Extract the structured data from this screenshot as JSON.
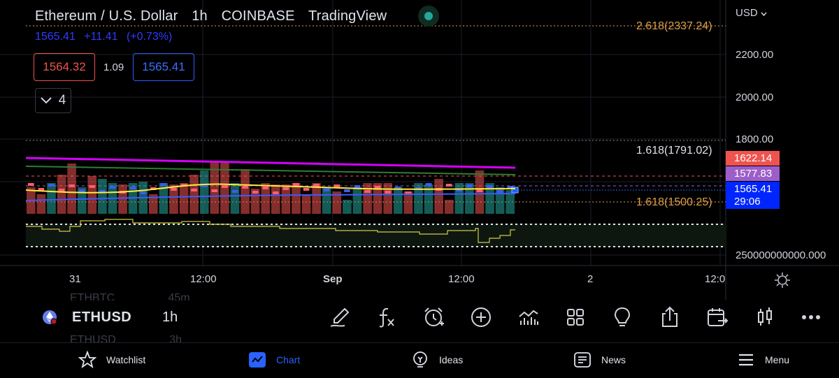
{
  "header": {
    "symbol_name": "Ethereum / U.S. Dollar",
    "interval": "1h",
    "exchange": "COINBASE",
    "provider": "TradingView",
    "status": "market-open",
    "last_price": "1565.41",
    "change": "+11.41",
    "change_pct": "(+0.73%)"
  },
  "trade": {
    "sell_price": "1564.32",
    "spread": "1.09",
    "buy_price": "1565.41"
  },
  "indicators_collapse": {
    "icon": "chevron-down-icon",
    "count": "4"
  },
  "price_axis": {
    "currency": "USD",
    "currency_icon": "chevron-down-icon",
    "ticks": [
      "2200.00",
      "2000.00",
      "1800.00"
    ],
    "volume_tick": "250000000000.000"
  },
  "fib_levels": [
    {
      "label": "2.618(2337.24)",
      "color": "#e0a04a"
    },
    {
      "label": "1.618(1791.02)",
      "color": "#e0e3eb"
    },
    {
      "label": "1.618(1500.25)",
      "color": "#e0a04a"
    }
  ],
  "price_tags": [
    {
      "value": "1622.14",
      "color": "#ef5350"
    },
    {
      "value": "1577.83",
      "color": "#9c5ec8"
    },
    {
      "value": "1565.41",
      "color": "#0026ff"
    },
    {
      "value": "29:06",
      "color": "#0026ff"
    }
  ],
  "time_axis": {
    "labels": [
      "31",
      "12:00",
      "Sep",
      "12:00",
      "2",
      "12:0"
    ],
    "settings_icon": "gear-icon"
  },
  "colors": {
    "up": "#26a69a",
    "down": "#ef5350",
    "accent": "#2962ff",
    "ma_magenta": "#d500f9",
    "ma_yellow": "#ffeb3b",
    "ma_green": "#4caf50"
  },
  "symbol_bar": {
    "ghost_above": {
      "symbol": "ETHBTC",
      "interval": "45m"
    },
    "symbol": "ETHUSD",
    "interval": "1h",
    "ghost_below": {
      "symbol": "ETHUSD",
      "interval": "3h"
    },
    "tools": [
      "brush-icon",
      "function-icon",
      "alarm-add-icon",
      "plus-circle-icon",
      "chart-type-icon",
      "layouts-icon",
      "ideas-bulb-icon",
      "share-icon",
      "calendar-compare-icon",
      "candle-icon",
      "more-icon"
    ]
  },
  "nav": {
    "items": [
      {
        "label": "Watchlist",
        "icon": "star-icon",
        "active": false
      },
      {
        "label": "Chart",
        "icon": "chart-icon",
        "active": true
      },
      {
        "label": "Ideas",
        "icon": "bulb-icon",
        "active": false
      },
      {
        "label": "News",
        "icon": "news-icon",
        "active": false
      },
      {
        "label": "Menu",
        "icon": "menu-icon",
        "active": false
      }
    ]
  }
}
